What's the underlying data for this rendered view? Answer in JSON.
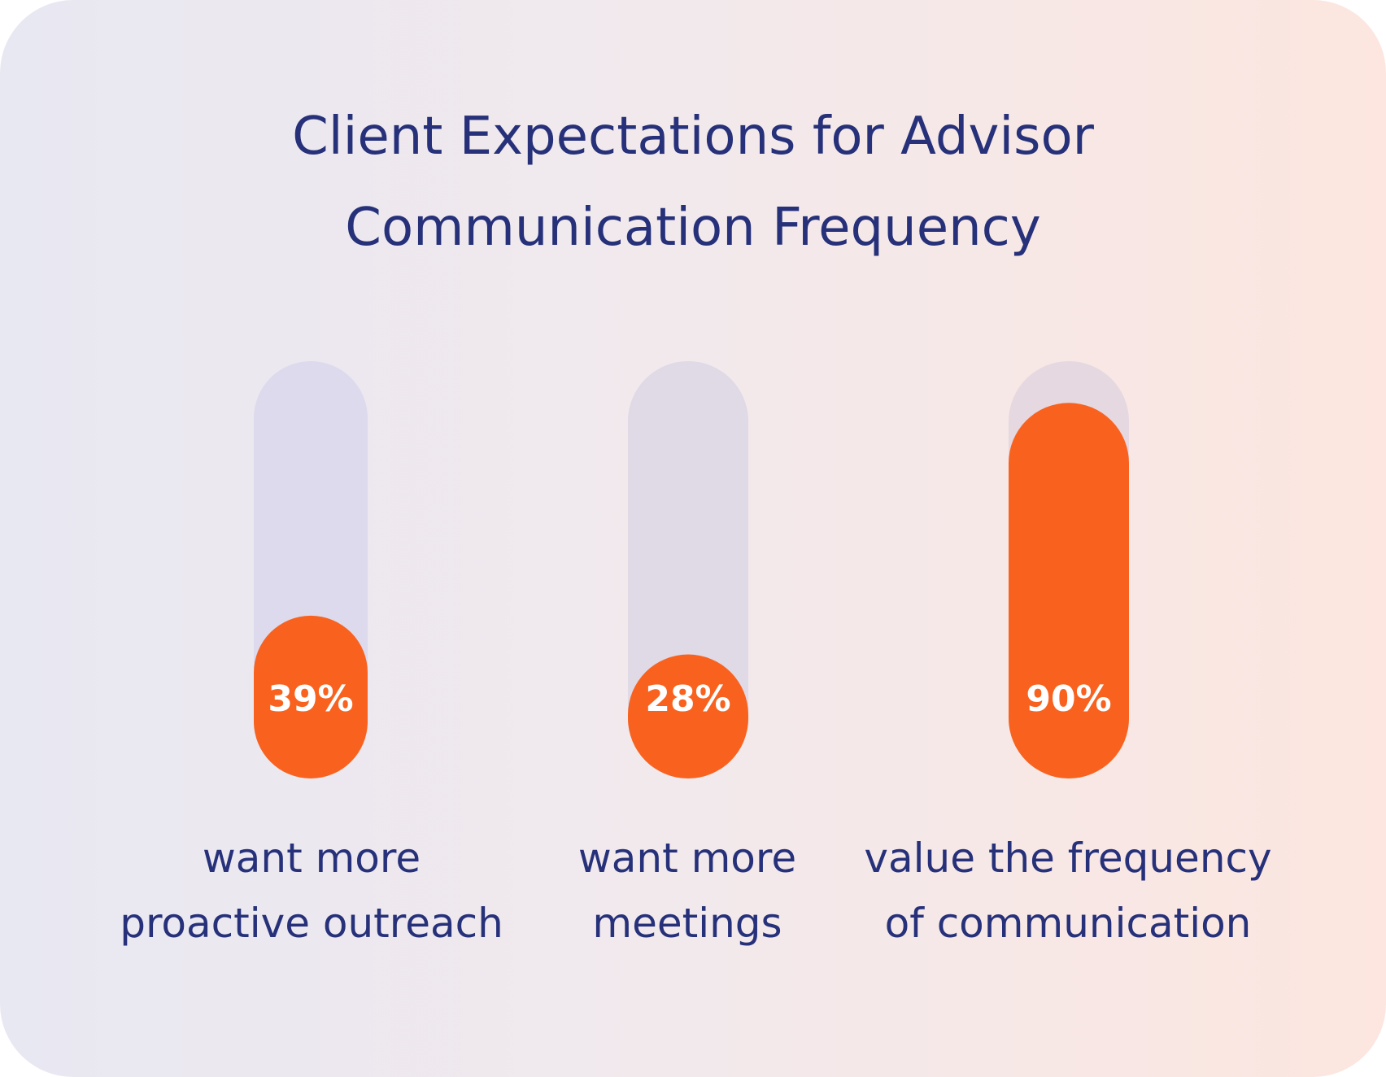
{
  "title": {
    "line1": "Client Expectations for Advisor",
    "line2": "Communication Frequency"
  },
  "colors": {
    "track": [
      "#dcdaec",
      "#e0d9e6",
      "#e5d8e0"
    ],
    "fill": "#f9621e",
    "text": "#26317a"
  },
  "chart_data": {
    "type": "bar",
    "title": "Client Expectations for Advisor Communication Frequency",
    "categories": [
      "want more proactive outreach",
      "want more meetings",
      "value the frequency of communication"
    ],
    "values": [
      39,
      28,
      90
    ],
    "value_labels": [
      "39%",
      "28%",
      "90%"
    ],
    "unit": "%",
    "ylim": [
      0,
      100
    ],
    "grid": false,
    "legend": "none"
  },
  "captions": [
    {
      "line1": "want more",
      "line2": "proactive outreach"
    },
    {
      "line1": "want more",
      "line2": "meetings"
    },
    {
      "line1": "value the frequency",
      "line2": "of communication"
    }
  ]
}
